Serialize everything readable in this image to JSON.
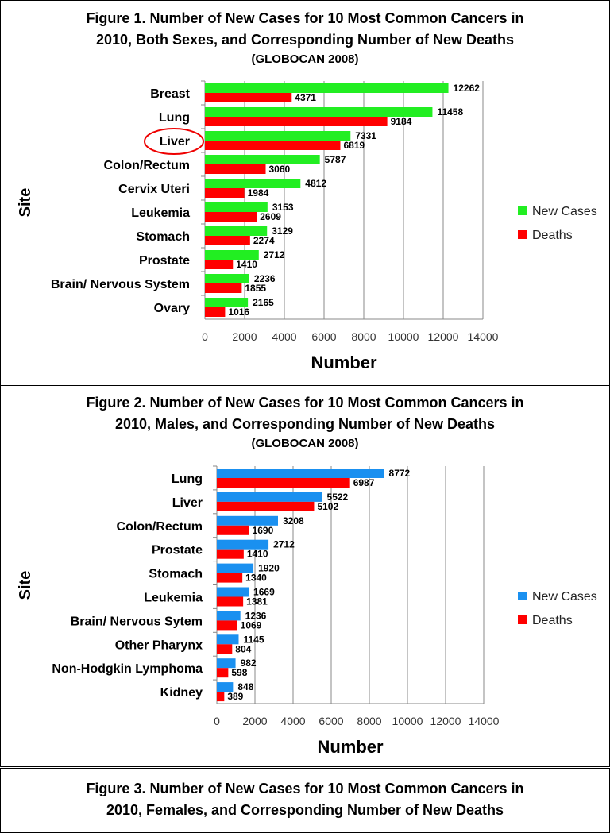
{
  "chart_data": [
    {
      "type": "bar",
      "orientation": "horizontal",
      "title": "Figure 1. Number of New Cases for 10 Most Common Cancers in 2010, Both Sexes, and Corresponding Number of New Deaths",
      "title_lines": [
        "Figure 1. Number of New Cases for 10 Most Common Cancers in",
        "2010, Both Sexes, and Corresponding Number of New Deaths"
      ],
      "subtitle": "(GLOBOCAN 2008)",
      "xlabel": "Number",
      "ylabel": "Site",
      "xlim": [
        0,
        14000
      ],
      "xticks": [
        "0",
        "2000",
        "4000",
        "6000",
        "8000",
        "10000",
        "12000",
        "14000"
      ],
      "grid": "vertical",
      "legend": "right",
      "highlight": "Liver",
      "categories": [
        "Breast",
        "Lung",
        "Liver",
        "Colon/Rectum",
        "Cervix Uteri",
        "Leukemia",
        "Stomach",
        "Prostate",
        "Brain/ Nervous System",
        "Ovary"
      ],
      "series": [
        {
          "name": "New Cases",
          "color": "#22ee22",
          "values": [
            12262,
            11458,
            7331,
            5787,
            4812,
            3153,
            3129,
            2712,
            2236,
            2165
          ]
        },
        {
          "name": "Deaths",
          "color": "#ff0000",
          "values": [
            4371,
            9184,
            6819,
            3060,
            1984,
            2609,
            2274,
            1410,
            1855,
            1016
          ]
        }
      ]
    },
    {
      "type": "bar",
      "orientation": "horizontal",
      "title": "Figure 2. Number of New Cases for 10 Most Common Cancers in 2010, Males, and Corresponding Number of New Deaths",
      "title_lines": [
        "Figure 2. Number of New Cases for 10 Most Common Cancers in",
        "2010, Males, and Corresponding Number of New Deaths"
      ],
      "subtitle": "(GLOBOCAN 2008)",
      "xlabel": "Number",
      "ylabel": "Site",
      "xlim": [
        0,
        14000
      ],
      "xticks": [
        "0",
        "2000",
        "4000",
        "6000",
        "8000",
        "10000",
        "12000",
        "14000"
      ],
      "grid": "vertical",
      "legend": "right",
      "categories": [
        "Lung",
        "Liver",
        "Colon/Rectum",
        "Prostate",
        "Stomach",
        "Leukemia",
        "Brain/ Nervous Sytem",
        "Other Pharynx",
        "Non-Hodgkin Lymphoma",
        "Kidney"
      ],
      "series": [
        {
          "name": "New Cases",
          "color": "#1a90f0",
          "values": [
            8772,
            5522,
            3208,
            2712,
            1920,
            1669,
            1236,
            1145,
            982,
            848
          ]
        },
        {
          "name": "Deaths",
          "color": "#ff0000",
          "values": [
            6987,
            5102,
            1690,
            1410,
            1340,
            1381,
            1069,
            804,
            598,
            389
          ]
        }
      ]
    }
  ],
  "figure3": {
    "title_lines": [
      "Figure 3. Number of New Cases for 10 Most Common Cancers in",
      "2010, Females, and Corresponding Number of New Deaths"
    ]
  }
}
